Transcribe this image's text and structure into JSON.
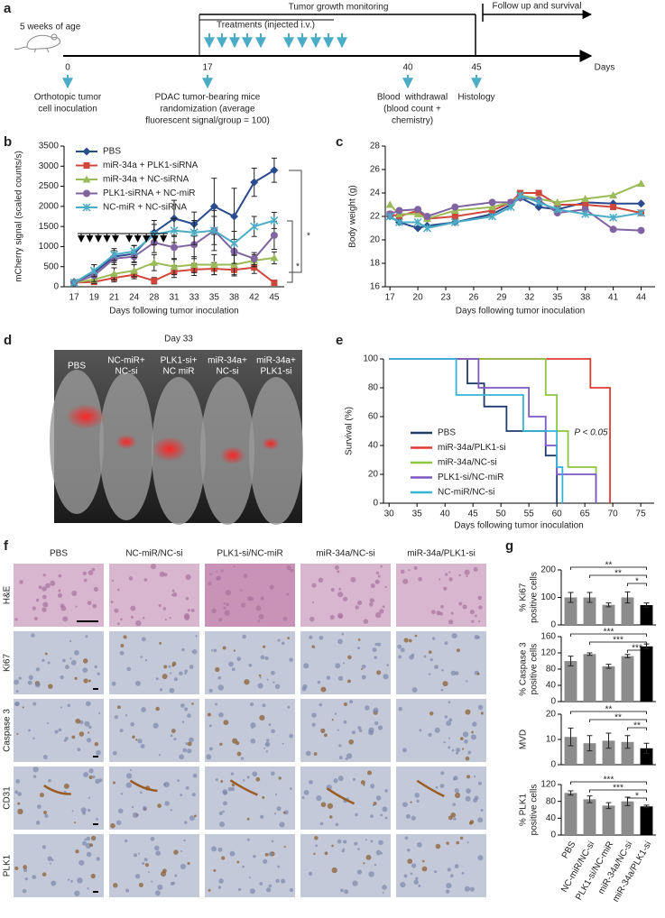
{
  "panel_labels": [
    "a",
    "b",
    "c",
    "d",
    "e",
    "f",
    "g"
  ],
  "timeline": {
    "age": "5 weeks of age",
    "monitoring": "Tumor growth monitoring",
    "follow_up": "Follow up and survival",
    "treatments": "Treatments (injected i.v.)",
    "ticks": [
      0,
      17,
      40,
      45
    ],
    "unit": "Days",
    "events": [
      [
        "Orthotopic tumor",
        "cell inoculation"
      ],
      [
        "PDAC tumor-bearing mice",
        "randomization (average",
        "fluorescent signal/group = 100)"
      ],
      [
        "Blood  withdrawal",
        "(blood count +",
        "chemistry)"
      ],
      [
        "Histology"
      ]
    ]
  },
  "image_d": {
    "title": "Day 33",
    "labels": [
      [
        "PBS"
      ],
      [
        "NC-miR+",
        "NC-si"
      ],
      [
        "PLK1-si+",
        "NC miR"
      ],
      [
        "miR-34a+",
        "NC-si"
      ],
      [
        "miR-34a+",
        "PLK1-si"
      ]
    ]
  },
  "histology": {
    "columns": [
      "PBS",
      "NC-miR/NC-si",
      "PLK1-si/NC-miR",
      "miR-34a/NC-si",
      "miR-34a/PLK1-si"
    ],
    "rows": [
      "H&E",
      "Ki67",
      "Caspase 3",
      "CD31",
      "PLK1"
    ]
  },
  "chart_data": [
    {
      "type": "line",
      "categories": [
        "17",
        "19",
        "21",
        "24",
        "28",
        "31",
        "33",
        "35",
        "38",
        "42",
        "45"
      ],
      "series": [
        {
          "name": "PBS",
          "color": "#2a4b8d",
          "marker": "diamond",
          "values": [
            120,
            350,
            750,
            820,
            1350,
            1700,
            1560,
            2000,
            1750,
            2600,
            2900
          ],
          "errors": [
            50,
            200,
            150,
            200,
            300,
            450,
            300,
            700,
            700,
            350,
            300
          ]
        },
        {
          "name": "miR-34a + PLK1-siRNA",
          "color": "#d0463a",
          "marker": "square",
          "values": [
            100,
            120,
            220,
            300,
            150,
            380,
            430,
            450,
            420,
            480,
            100
          ],
          "errors": [
            40,
            60,
            100,
            100,
            80,
            150,
            150,
            150,
            150,
            150,
            40
          ]
        },
        {
          "name": "miR-34a + NC-siRNA",
          "color": "#9bbb59",
          "marker": "triangle",
          "values": [
            100,
            180,
            320,
            400,
            600,
            500,
            550,
            550,
            550,
            650,
            720
          ],
          "errors": [
            40,
            100,
            150,
            150,
            200,
            200,
            200,
            250,
            250,
            150,
            150
          ]
        },
        {
          "name": "PLK1-siRNA + NC-miR",
          "color": "#8064a2",
          "marker": "circle",
          "values": [
            100,
            280,
            700,
            750,
            1100,
            980,
            1050,
            1400,
            880,
            700,
            1280
          ],
          "errors": [
            50,
            150,
            150,
            150,
            250,
            300,
            350,
            500,
            300,
            150,
            350
          ]
        },
        {
          "name": "NC-miR + NC-siRNA",
          "color": "#4bacc6",
          "marker": "x",
          "values": [
            100,
            400,
            800,
            880,
            1300,
            1400,
            1350,
            1400,
            1080,
            1500,
            1650
          ],
          "errors": [
            50,
            150,
            150,
            150,
            250,
            300,
            300,
            350,
            300,
            250,
            200
          ]
        }
      ],
      "ylim": [
        0,
        3500
      ],
      "yticks": [
        0,
        500,
        1000,
        1500,
        2000,
        2500,
        3000,
        3500
      ],
      "xlabel": "Days following tumor inoculation",
      "ylabel": "mCherry signal (scaled counts/s)",
      "annotations": [
        "*",
        "*"
      ]
    },
    {
      "type": "line",
      "x": [
        17,
        18,
        20,
        21,
        24,
        28,
        30,
        31,
        33,
        35,
        38,
        41,
        44
      ],
      "series": [
        {
          "color": "#2a4b8d",
          "marker": "diamond",
          "values": [
            22,
            21.5,
            21,
            21.2,
            21.5,
            22.2,
            23,
            23.6,
            22.8,
            22.6,
            23.2,
            23.1,
            23.1
          ]
        },
        {
          "color": "#d0463a",
          "marker": "square",
          "values": [
            22.2,
            22,
            22.5,
            21.8,
            22,
            22.5,
            23.2,
            24,
            24,
            23,
            23,
            22.8,
            22.3
          ]
        },
        {
          "color": "#9bbb59",
          "marker": "triangle",
          "values": [
            23,
            22.2,
            22.2,
            21.8,
            22.5,
            22.8,
            23.2,
            23.8,
            23.5,
            23.2,
            23.5,
            23.8,
            24.8
          ]
        },
        {
          "color": "#8064a2",
          "marker": "circle",
          "values": [
            22.2,
            22.5,
            22.6,
            22,
            22.8,
            23.2,
            23.2,
            23.6,
            23.4,
            22.3,
            22.6,
            20.9,
            20.8
          ]
        },
        {
          "color": "#4bacc6",
          "marker": "x",
          "values": [
            22,
            21.5,
            21.5,
            21,
            21.5,
            22,
            22.8,
            23.8,
            23.2,
            22.6,
            22.2,
            21.9,
            22.3
          ]
        }
      ],
      "xlim": [
        16.5,
        45.5
      ],
      "xticks": [
        17,
        20,
        23,
        26,
        29,
        32,
        35,
        38,
        41,
        44
      ],
      "ylim": [
        16,
        28
      ],
      "yticks": [
        16,
        18,
        20,
        22,
        24,
        26,
        28
      ],
      "xlabel": "Days following tumor inoculation",
      "ylabel": "Body weight (g)"
    },
    {
      "type": "step",
      "series": [
        {
          "name": "PBS",
          "color": "#1f3d6b",
          "x": [
            30,
            44,
            47,
            51,
            58,
            60
          ],
          "values": [
            100,
            83,
            67,
            50,
            33,
            0
          ]
        },
        {
          "name": "miR-34a/PLK1-si",
          "color": "#e03c31",
          "x": [
            30,
            66,
            69.5
          ],
          "values": [
            100,
            80,
            0
          ]
        },
        {
          "name": "miR-34a/NC-si",
          "color": "#8dc63f",
          "x": [
            30,
            58,
            60,
            62,
            67
          ],
          "values": [
            100,
            75,
            50,
            25,
            0
          ]
        },
        {
          "name": "PLK1-si/NC-miR",
          "color": "#7e57c2",
          "x": [
            30,
            46,
            55,
            58,
            60,
            67
          ],
          "values": [
            100,
            80,
            60,
            40,
            20,
            0
          ]
        },
        {
          "name": "NC-miR/NC-si",
          "color": "#33b5d6",
          "x": [
            30,
            42,
            54,
            60,
            61
          ],
          "values": [
            100,
            75,
            50,
            25,
            0
          ]
        }
      ],
      "xlim": [
        29,
        77.4
      ],
      "xticks": [
        30,
        35,
        40,
        45,
        50,
        55,
        60,
        65,
        70,
        75
      ],
      "ylim": [
        0,
        100
      ],
      "yticks": [
        0,
        20,
        40,
        60,
        80,
        100
      ],
      "xlabel": "Days following tumor inoculation",
      "ylabel": "Survival (%)",
      "annotation": "P < 0.05"
    },
    {
      "type": "bar",
      "values": [
        100,
        100,
        73,
        100,
        72
      ],
      "errors": [
        18,
        18,
        7,
        20,
        8
      ],
      "colors": [
        "#8c8c8c",
        "#8c8c8c",
        "#8c8c8c",
        "#8c8c8c",
        "#000000"
      ],
      "ylim": [
        0,
        200
      ],
      "yticks": [
        0,
        100,
        200
      ],
      "ylabel": [
        "% Ki67",
        "positive cells"
      ],
      "annotations": [
        "**",
        "**",
        "*"
      ]
    },
    {
      "type": "bar",
      "values": [
        100,
        117,
        87,
        112,
        136
      ],
      "errors": [
        12,
        3,
        5,
        4,
        6
      ],
      "colors": [
        "#8c8c8c",
        "#8c8c8c",
        "#8c8c8c",
        "#8c8c8c",
        "#000000"
      ],
      "ylim": [
        0,
        160
      ],
      "yticks": [
        0,
        40,
        80,
        120,
        160
      ],
      "ylabel": [
        "% Caspase 3",
        "positive cells"
      ],
      "annotations": [
        "***",
        "***",
        "***"
      ]
    },
    {
      "type": "bar",
      "values": [
        11,
        8.5,
        9.5,
        9,
        6.5
      ],
      "errors": [
        3.5,
        3,
        3,
        2.5,
        2
      ],
      "colors": [
        "#8c8c8c",
        "#8c8c8c",
        "#8c8c8c",
        "#8c8c8c",
        "#000000"
      ],
      "ylim": [
        0,
        20
      ],
      "yticks": [
        0,
        10,
        20
      ],
      "ylabel": [
        "MVD"
      ],
      "annotations": [
        "**",
        "**",
        "**"
      ]
    },
    {
      "type": "bar",
      "categories": [
        "PBS",
        "NC-miR/NC-si",
        "PLK1-si/NC-miR",
        "miR-34a/NC-si",
        "miR-34a/PLK1-si"
      ],
      "values": [
        100,
        85,
        70,
        80,
        68
      ],
      "errors": [
        5,
        8,
        7,
        10,
        3
      ],
      "colors": [
        "#8c8c8c",
        "#8c8c8c",
        "#8c8c8c",
        "#8c8c8c",
        "#000000"
      ],
      "ylim": [
        0,
        120
      ],
      "yticks": [
        0,
        40,
        80,
        120
      ],
      "ylabel": [
        "% PLK1",
        "positive cells"
      ],
      "annotations": [
        "***",
        "***",
        "*"
      ]
    }
  ]
}
